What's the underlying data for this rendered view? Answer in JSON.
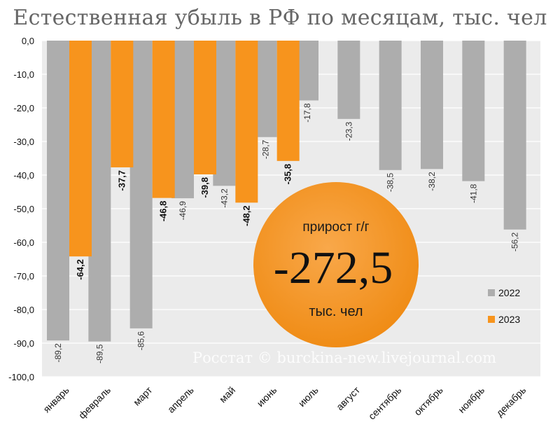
{
  "chart_data": {
    "type": "bar",
    "title": "Естественная убыль в РФ по месяцам, тыс. чел",
    "categories": [
      "январь",
      "февраль",
      "март",
      "апрель",
      "май",
      "июнь",
      "июль",
      "август",
      "сентябрь",
      "октябрь",
      "ноябрь",
      "декабрь"
    ],
    "series": [
      {
        "name": "2022",
        "values": [
          -89.2,
          -89.5,
          -85.6,
          -46.9,
          -43.2,
          -28.7,
          -17.8,
          -23.3,
          -38.5,
          -38.2,
          -41.8,
          -56.2
        ],
        "labels": [
          "-89,2",
          "-89,5",
          "-85,6",
          "-46,9",
          "-43,2",
          "-28,7",
          "-17,8",
          "-23,3",
          "-38,5",
          "-38,2",
          "-41,8",
          "-56,2"
        ],
        "color": "#adadad"
      },
      {
        "name": "2023",
        "values": [
          -64.2,
          -37.7,
          -46.8,
          -39.8,
          -48.2,
          -35.8,
          null,
          null,
          null,
          null,
          null,
          null
        ],
        "labels": [
          "-64,2",
          "-37,7",
          "-46,8",
          "-39,8",
          "-48,2",
          "-35,8",
          null,
          null,
          null,
          null,
          null,
          null
        ],
        "color": "#f7941d"
      }
    ],
    "ylim": [
      -100,
      0
    ],
    "yticks": [
      0,
      -10,
      -20,
      -30,
      -40,
      -50,
      -60,
      -70,
      -80,
      -90,
      -100
    ],
    "ytick_labels": [
      "0,0",
      "-10,0",
      "-20,0",
      "-30,0",
      "-40,0",
      "-50,0",
      "-60,0",
      "-70,0",
      "-80,0",
      "-90,0",
      "-100,0"
    ],
    "grid": true,
    "legend_position": "bottom-right",
    "annotations": {
      "callout_top": "прирост г/г",
      "callout_value": "-272,5",
      "callout_unit": "тыс. чел",
      "watermark": "Росстат © burckina-new.livejournal.com"
    }
  },
  "colors": {
    "plot_background": "#ebebeb",
    "gridline": "#ffffff",
    "bar_2022": "#adadad",
    "bar_2023": "#f7941d",
    "callout_fill": "#f7941d",
    "title_text": "#666666"
  }
}
